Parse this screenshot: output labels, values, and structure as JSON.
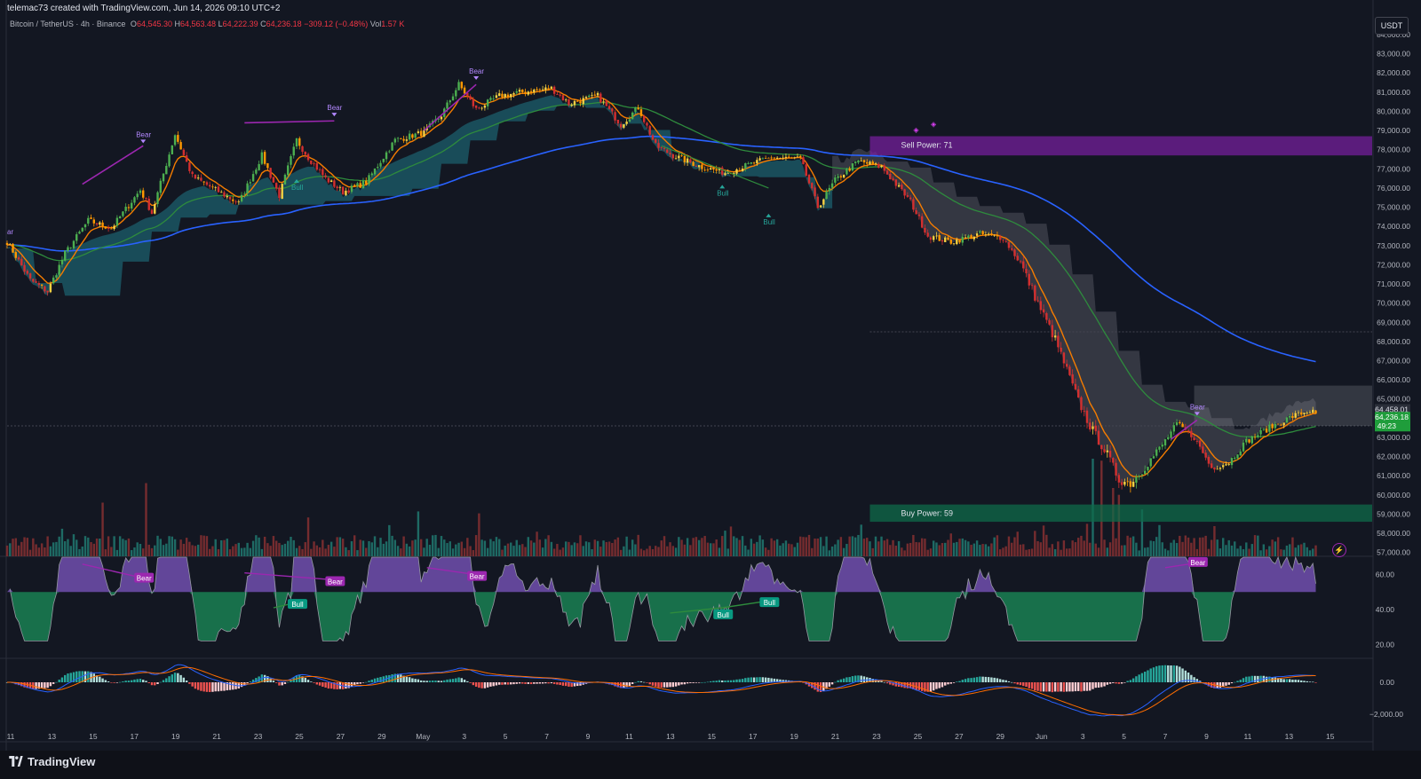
{
  "header": {
    "attribution": "telemac73 created with TradingView.com, Jun 14, 2026 09:10 UTC+2",
    "symbol": "Bitcoin / TetherUS · 4h · Binance",
    "open_label": "O",
    "open": "64,545.30",
    "high_label": "H",
    "high": "64,563.48",
    "low_label": "L",
    "low": "64,222.39",
    "close_label": "C",
    "close": "64,236.18",
    "change": "−309.12 (−0.48%)",
    "vol_label": "Vol",
    "vol": "1.57 K"
  },
  "currency_unit": "USDT",
  "price_axis": {
    "ticks": [
      "84,000.00",
      "83,000.00",
      "82,000.00",
      "81,000.00",
      "80,000.00",
      "79,000.00",
      "78,000.00",
      "77,000.00",
      "76,000.00",
      "75,000.00",
      "74,000.00",
      "73,000.00",
      "72,000.00",
      "71,000.00",
      "70,000.00",
      "69,000.00",
      "68,000.00",
      "67,000.00",
      "66,000.00",
      "65,000.00",
      "64,000.00",
      "63,000.00",
      "62,000.00",
      "61,000.00",
      "60,000.00",
      "59,000.00",
      "58,000.00",
      "57,000.00"
    ],
    "price_tag_1": "64,458.01",
    "price_tag_2": "64,236.18",
    "countdown": "49:23"
  },
  "osc_axis": {
    "ticks": [
      "60.00",
      "40.00",
      "20.00"
    ]
  },
  "macd_axis": {
    "ticks": [
      "0.00",
      "−2,000.00"
    ]
  },
  "time_axis": [
    "11",
    "13",
    "15",
    "17",
    "19",
    "21",
    "23",
    "25",
    "27",
    "29",
    "May",
    "3",
    "5",
    "7",
    "9",
    "11",
    "13",
    "15",
    "17",
    "19",
    "21",
    "23",
    "25",
    "27",
    "29",
    "Jun",
    "3",
    "5",
    "7",
    "9",
    "11",
    "13",
    "15"
  ],
  "zones": {
    "sell_label": "Sell Power: 71",
    "buy_label": "Buy Power: 59"
  },
  "signals": {
    "bear": "Bear",
    "bull": "Bull",
    "bear_cut": "ar"
  },
  "osc_signals": {
    "bear": "Bear",
    "bull": "Bull"
  },
  "footer": {
    "brand": "TradingView"
  },
  "colors": {
    "background": "#131722",
    "up": "#26a69a",
    "down": "#ef5350",
    "ema_fast": "#f57c00",
    "ema_mid": "#2e7d32",
    "ema_slow": "#2962ff",
    "cloud": "#1e6e7e",
    "bear": "#9c27b0",
    "bull": "#089981"
  },
  "chart_data": {
    "type": "candlestick",
    "timeframe": "4h",
    "ylim": [
      56800,
      84600
    ],
    "close_anchors": [
      [
        0,
        73200
      ],
      [
        8,
        71200
      ],
      [
        14,
        70600
      ],
      [
        20,
        72600
      ],
      [
        28,
        74300
      ],
      [
        36,
        73900
      ],
      [
        42,
        75100
      ],
      [
        46,
        75900
      ],
      [
        50,
        74700
      ],
      [
        58,
        78800
      ],
      [
        64,
        76600
      ],
      [
        72,
        75900
      ],
      [
        80,
        75200
      ],
      [
        88,
        77700
      ],
      [
        94,
        75600
      ],
      [
        100,
        78500
      ],
      [
        104,
        77600
      ],
      [
        110,
        76500
      ],
      [
        116,
        75800
      ],
      [
        124,
        76300
      ],
      [
        134,
        78500
      ],
      [
        144,
        78900
      ],
      [
        150,
        79800
      ],
      [
        156,
        81400
      ],
      [
        162,
        80100
      ],
      [
        170,
        80800
      ],
      [
        178,
        81000
      ],
      [
        188,
        81200
      ],
      [
        194,
        80400
      ],
      [
        204,
        80800
      ],
      [
        212,
        79300
      ],
      [
        218,
        80200
      ],
      [
        224,
        78200
      ],
      [
        230,
        77700
      ],
      [
        240,
        77100
      ],
      [
        248,
        76800
      ],
      [
        254,
        77100
      ],
      [
        264,
        77600
      ],
      [
        274,
        77500
      ],
      [
        280,
        75000
      ],
      [
        286,
        76400
      ],
      [
        294,
        77400
      ],
      [
        302,
        77100
      ],
      [
        312,
        75300
      ],
      [
        318,
        73500
      ],
      [
        326,
        73200
      ],
      [
        336,
        73600
      ],
      [
        344,
        73400
      ],
      [
        350,
        72100
      ],
      [
        356,
        70000
      ],
      [
        362,
        68100
      ],
      [
        366,
        66500
      ],
      [
        370,
        64900
      ],
      [
        374,
        63600
      ],
      [
        380,
        62100
      ],
      [
        384,
        60800
      ],
      [
        388,
        60600
      ],
      [
        392,
        61300
      ],
      [
        398,
        62400
      ],
      [
        404,
        63700
      ],
      [
        410,
        63000
      ],
      [
        416,
        61400
      ],
      [
        422,
        61700
      ],
      [
        428,
        62800
      ],
      [
        436,
        63500
      ],
      [
        444,
        64100
      ],
      [
        450,
        64400
      ],
      [
        452,
        64236
      ]
    ],
    "volume_spikes": [
      [
        33,
        5.5
      ],
      [
        48,
        7.5
      ],
      [
        142,
        4.6
      ],
      [
        163,
        4.4
      ],
      [
        375,
        10
      ],
      [
        378,
        9.8
      ],
      [
        382,
        7
      ],
      [
        384,
        6.3
      ],
      [
        392,
        4.8
      ],
      [
        398,
        3.2
      ]
    ],
    "sell_zone": [
      77700,
      78700
    ],
    "buy_zone": [
      58600,
      59500
    ],
    "last_price": 64236.18,
    "prior_tag": 64458.01,
    "countdown": "49:23"
  }
}
